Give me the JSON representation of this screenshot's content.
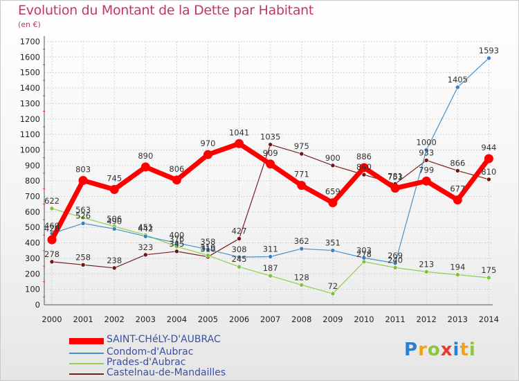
{
  "chart_data": {
    "type": "line",
    "title": "Evolution du Montant de la Dette par Habitant",
    "subtitle": "(en €)",
    "x": [
      "2000",
      "2001",
      "2002",
      "2003",
      "2004",
      "2005",
      "2006",
      "2007",
      "2008",
      "2009",
      "2010",
      "2011",
      "2012",
      "2013",
      "2014"
    ],
    "ylim": [
      0,
      1700
    ],
    "yticks": [
      0,
      100,
      200,
      300,
      400,
      500,
      600,
      700,
      800,
      900,
      1000,
      1100,
      1200,
      1300,
      1400,
      1500,
      1600,
      1700
    ],
    "grid": true,
    "legend_position": "bottom-left",
    "series": [
      {
        "name": "SAINT-CHéLY-D'AUBRAC",
        "color": "#ff0000",
        "values": [
          420,
          803,
          745,
          890,
          806,
          970,
          1041,
          909,
          771,
          659,
          886,
          753,
          799,
          677,
          944
        ]
      },
      {
        "name": "Condom-d'Aubrac",
        "color": "#4a90c8",
        "values": [
          460,
          526,
          490,
          442,
          400,
          358,
          308,
          311,
          362,
          351,
          303,
          269,
          1000,
          1405,
          1593
        ]
      },
      {
        "name": "Prades-d'Aubrac",
        "color": "#8dcf4f",
        "values": [
          622,
          563,
          506,
          451,
          376,
          319,
          245,
          187,
          128,
          72,
          278,
          240,
          213,
          194,
          175
        ]
      },
      {
        "name": "Castelnau-de-Mandailles",
        "color": "#7a1e1e",
        "values": [
          278,
          258,
          238,
          323,
          345,
          310,
          427,
          1035,
          975,
          900,
          840,
          781,
          933,
          866,
          810
        ]
      }
    ]
  },
  "logo": {
    "p": "P",
    "r": "r",
    "o": "o",
    "x": "x",
    "i": "i",
    "t": "t",
    "i2": "i"
  }
}
